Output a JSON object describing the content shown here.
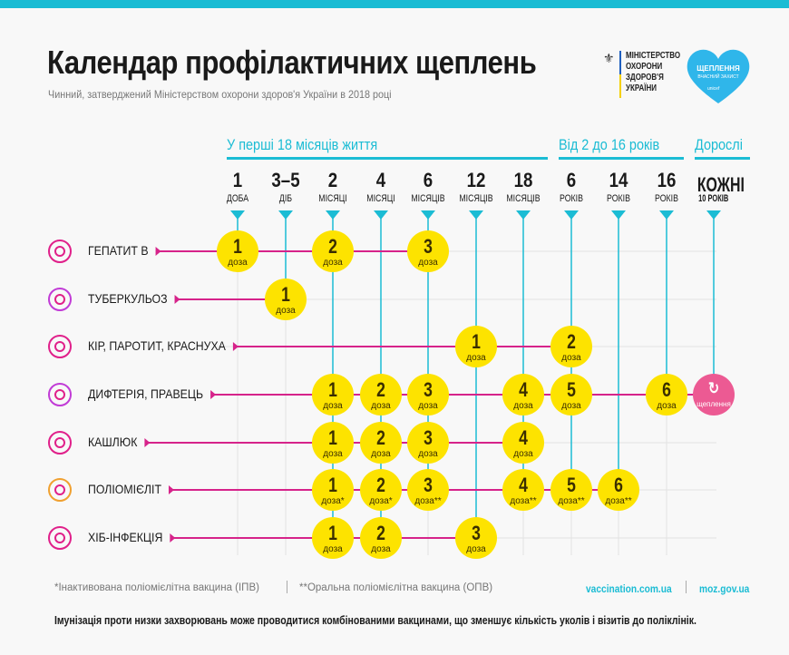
{
  "header": {
    "title": "Календар профілактичних щеплень",
    "subtitle": "Чинний, затверджений Міністерством охорони здоров'я України в 2018 році",
    "ministry_logo": [
      "МІНІСТЕРСТВО",
      "ОХОРОНИ",
      "ЗДОРОВ'Я",
      "УКРАЇНИ"
    ],
    "campaign_logo": {
      "title": "ЩЕПЛЕННЯ",
      "subtitle": "ВЧАСНИЙ ЗАХИСТ",
      "brand": "unicef"
    }
  },
  "groups": [
    "У перші 18 місяців життя",
    "Від 2 до 16 років",
    "Дорослі"
  ],
  "columns": [
    {
      "num": "1",
      "unit": "ДОБА"
    },
    {
      "num": "3–5",
      "unit": "ДІБ"
    },
    {
      "num": "2",
      "unit": "МІСЯЦІ"
    },
    {
      "num": "4",
      "unit": "МІСЯЦІ"
    },
    {
      "num": "6",
      "unit": "МІСЯЦІВ"
    },
    {
      "num": "12",
      "unit": "МІСЯЦІВ"
    },
    {
      "num": "18",
      "unit": "МІСЯЦІВ"
    },
    {
      "num": "6",
      "unit": "РОКІВ"
    },
    {
      "num": "14",
      "unit": "РОКІВ"
    },
    {
      "num": "16",
      "unit": "РОКІВ"
    },
    {
      "num": "КОЖНІ",
      "unit": "10 РОКІВ"
    }
  ],
  "dose_word": "доза",
  "special_dose": {
    "label": "щеплення",
    "icon": "refresh-icon"
  },
  "rows": [
    {
      "label": "ГЕПАТИТ В",
      "icon": "virus-icon",
      "doses": [
        {
          "col": 0,
          "n": "1",
          "note": ""
        },
        {
          "col": 2,
          "n": "2",
          "note": ""
        },
        {
          "col": 4,
          "n": "3",
          "note": ""
        }
      ]
    },
    {
      "label": "ТУБЕРКУЛЬОЗ",
      "icon": "bacteria-rods-icon",
      "doses": [
        {
          "col": 1,
          "n": "1",
          "note": ""
        }
      ]
    },
    {
      "label": "КІР, ПАРОТИТ, КРАСНУХА",
      "icon": "virus-spiral-icon",
      "doses": [
        {
          "col": 5,
          "n": "1",
          "note": ""
        },
        {
          "col": 7,
          "n": "2",
          "note": ""
        }
      ]
    },
    {
      "label": "ДИФТЕРІЯ, ПРАВЕЦЬ",
      "icon": "bacteria-cluster-icon",
      "doses": [
        {
          "col": 2,
          "n": "1",
          "note": ""
        },
        {
          "col": 3,
          "n": "2",
          "note": ""
        },
        {
          "col": 4,
          "n": "3",
          "note": ""
        },
        {
          "col": 6,
          "n": "4",
          "note": ""
        },
        {
          "col": 7,
          "n": "5",
          "note": ""
        },
        {
          "col": 9,
          "n": "6",
          "note": ""
        },
        {
          "col": 10,
          "special": true
        }
      ]
    },
    {
      "label": "КАШЛЮК",
      "icon": "bacteria-oval-icon",
      "doses": [
        {
          "col": 2,
          "n": "1",
          "note": ""
        },
        {
          "col": 3,
          "n": "2",
          "note": ""
        },
        {
          "col": 4,
          "n": "3",
          "note": ""
        },
        {
          "col": 6,
          "n": "4",
          "note": ""
        }
      ]
    },
    {
      "label": "ПОЛІОМІЄЛІТ",
      "icon": "polio-virus-icon",
      "doses": [
        {
          "col": 2,
          "n": "1",
          "note": "*"
        },
        {
          "col": 3,
          "n": "2",
          "note": "*"
        },
        {
          "col": 4,
          "n": "3",
          "note": "**"
        },
        {
          "col": 6,
          "n": "4",
          "note": "**"
        },
        {
          "col": 7,
          "n": "5",
          "note": "**"
        },
        {
          "col": 8,
          "n": "6",
          "note": "**"
        }
      ]
    },
    {
      "label": "ХІБ-ІНФЕКЦІЯ",
      "icon": "hib-bacteria-icon",
      "doses": [
        {
          "col": 2,
          "n": "1",
          "note": ""
        },
        {
          "col": 3,
          "n": "2",
          "note": ""
        },
        {
          "col": 5,
          "n": "3",
          "note": ""
        }
      ]
    }
  ],
  "footer": {
    "footnote1": "*Інактивована поліомієлітна вакцина (ІПВ)",
    "footnote2": "**Оральна поліомієлітна вакцина (ОПВ)",
    "link1": "vaccination.com.ua",
    "link2": "moz.gov.ua",
    "note": "Імунізація проти низки захворювань може проводитися комбінованими вакцинами, що зменшує кількість уколів і візитів до поліклінік."
  },
  "colors": {
    "accent": "#1bbcd4",
    "dose": "#fde300",
    "special": "#ec5a93",
    "row_line": "#d6238a"
  }
}
